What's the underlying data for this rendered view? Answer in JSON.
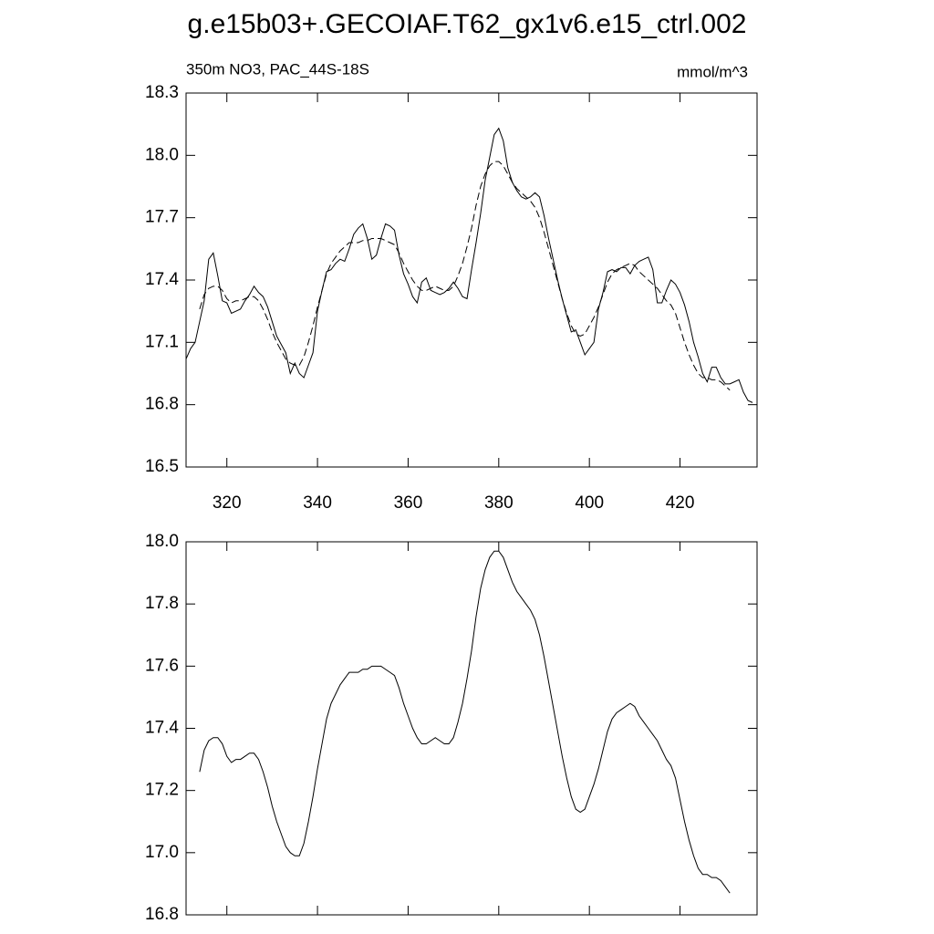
{
  "chart_data": [
    {
      "type": "line",
      "title": "g.e15b03+.GECOIAF.T62_gx1v6.e15_ctrl.002",
      "subtitle": "350m NO3, PAC_44S-18S",
      "units": "mmol/m^3",
      "xlim": [
        311,
        437
      ],
      "ylim": [
        16.5,
        18.3
      ],
      "xticks": [
        320,
        340,
        360,
        380,
        400,
        420
      ],
      "yticks": [
        16.5,
        16.8,
        17.1,
        17.4,
        17.7,
        {
          "value": 18,
          "label": "18.0"
        },
        18.3
      ],
      "show_xtick_labels": true,
      "series": [
        {
          "style": "solid",
          "color": "#000000",
          "x": [
            311,
            312,
            313,
            314,
            315,
            316,
            317,
            318,
            319,
            320,
            321,
            322,
            323,
            324,
            325,
            326,
            327,
            328,
            329,
            330,
            331,
            332,
            333,
            334,
            335,
            336,
            337,
            338,
            339,
            340,
            341,
            342,
            343,
            344,
            345,
            346,
            347,
            348,
            349,
            350,
            351,
            352,
            353,
            354,
            355,
            356,
            357,
            358,
            359,
            360,
            361,
            362,
            363,
            364,
            365,
            366,
            367,
            368,
            369,
            370,
            371,
            372,
            373,
            374,
            375,
            376,
            377,
            378,
            379,
            380,
            381,
            382,
            383,
            384,
            385,
            386,
            387,
            388,
            389,
            390,
            391,
            392,
            393,
            394,
            395,
            396,
            397,
            398,
            399,
            400,
            401,
            402,
            403,
            404,
            405,
            406,
            407,
            408,
            409,
            410,
            411,
            412,
            413,
            414,
            415,
            416,
            417,
            418,
            419,
            420,
            421,
            422,
            423,
            424,
            425,
            426,
            427,
            428,
            429,
            430,
            431,
            432,
            433,
            434,
            435,
            436
          ],
          "values": [
            17.02,
            17.07,
            17.1,
            17.2,
            17.3,
            17.5,
            17.53,
            17.42,
            17.3,
            17.29,
            17.24,
            17.25,
            17.26,
            17.3,
            17.33,
            17.37,
            17.34,
            17.32,
            17.27,
            17.2,
            17.13,
            17.09,
            17.05,
            16.95,
            17.0,
            16.95,
            16.93,
            16.99,
            17.05,
            17.25,
            17.35,
            17.44,
            17.45,
            17.48,
            17.5,
            17.49,
            17.55,
            17.62,
            17.65,
            17.67,
            17.6,
            17.5,
            17.52,
            17.6,
            17.67,
            17.66,
            17.64,
            17.52,
            17.43,
            17.38,
            17.32,
            17.29,
            17.39,
            17.41,
            17.35,
            17.34,
            17.33,
            17.34,
            17.36,
            17.39,
            17.36,
            17.32,
            17.31,
            17.45,
            17.58,
            17.72,
            17.88,
            17.99,
            18.1,
            18.13,
            18.07,
            17.94,
            17.87,
            17.83,
            17.8,
            17.79,
            17.8,
            17.82,
            17.8,
            17.71,
            17.6,
            17.5,
            17.4,
            17.31,
            17.23,
            17.15,
            17.16,
            17.1,
            17.04,
            17.07,
            17.1,
            17.26,
            17.34,
            17.44,
            17.45,
            17.44,
            17.46,
            17.46,
            17.43,
            17.47,
            17.49,
            17.5,
            17.51,
            17.45,
            17.29,
            17.29,
            17.35,
            17.4,
            17.38,
            17.34,
            17.28,
            17.2,
            17.1,
            17.03,
            16.95,
            16.91,
            16.98,
            16.98,
            16.93,
            16.9,
            16.9,
            16.91,
            16.92,
            16.86,
            16.82,
            16.81
          ]
        },
        {
          "style": "dashed",
          "color": "#000000",
          "x": [
            314,
            315,
            316,
            317,
            318,
            319,
            320,
            321,
            322,
            323,
            324,
            325,
            326,
            327,
            328,
            329,
            330,
            331,
            332,
            333,
            334,
            335,
            336,
            337,
            338,
            339,
            340,
            341,
            342,
            343,
            344,
            345,
            346,
            347,
            348,
            349,
            350,
            351,
            352,
            353,
            354,
            355,
            356,
            357,
            358,
            359,
            360,
            361,
            362,
            363,
            364,
            365,
            366,
            367,
            368,
            369,
            370,
            371,
            372,
            373,
            374,
            375,
            376,
            377,
            378,
            379,
            380,
            381,
            382,
            383,
            384,
            385,
            386,
            387,
            388,
            389,
            390,
            391,
            392,
            393,
            394,
            395,
            396,
            397,
            398,
            399,
            400,
            401,
            402,
            403,
            404,
            405,
            406,
            407,
            408,
            409,
            410,
            411,
            412,
            413,
            414,
            415,
            416,
            417,
            418,
            419,
            420,
            421,
            422,
            423,
            424,
            425,
            426,
            427,
            428,
            429,
            430,
            431
          ],
          "values": [
            17.26,
            17.33,
            17.36,
            17.37,
            17.37,
            17.35,
            17.31,
            17.29,
            17.3,
            17.3,
            17.31,
            17.32,
            17.32,
            17.3,
            17.26,
            17.21,
            17.15,
            17.1,
            17.06,
            17.02,
            17.0,
            16.99,
            16.99,
            17.03,
            17.1,
            17.18,
            17.27,
            17.35,
            17.43,
            17.48,
            17.51,
            17.54,
            17.56,
            17.58,
            17.58,
            17.58,
            17.59,
            17.59,
            17.6,
            17.6,
            17.6,
            17.59,
            17.58,
            17.57,
            17.53,
            17.48,
            17.44,
            17.4,
            17.37,
            17.35,
            17.35,
            17.36,
            17.37,
            17.36,
            17.35,
            17.35,
            17.37,
            17.42,
            17.48,
            17.56,
            17.65,
            17.76,
            17.85,
            17.91,
            17.95,
            17.97,
            17.97,
            17.95,
            17.91,
            17.87,
            17.84,
            17.82,
            17.8,
            17.78,
            17.75,
            17.7,
            17.63,
            17.55,
            17.47,
            17.39,
            17.31,
            17.24,
            17.18,
            17.14,
            17.13,
            17.14,
            17.18,
            17.22,
            17.27,
            17.33,
            17.39,
            17.43,
            17.45,
            17.46,
            17.47,
            17.48,
            17.47,
            17.44,
            17.42,
            17.4,
            17.38,
            17.36,
            17.33,
            17.3,
            17.28,
            17.24,
            17.17,
            17.1,
            17.04,
            16.99,
            16.95,
            16.93,
            16.93,
            16.92,
            16.92,
            16.91,
            16.89,
            16.87
          ]
        }
      ]
    },
    {
      "type": "line",
      "xlim": [
        311,
        437
      ],
      "ylim": [
        16.8,
        18.0
      ],
      "xticks": [
        320,
        340,
        360,
        380,
        400,
        420
      ],
      "yticks": [
        16.8,
        {
          "value": 17,
          "label": "17.0"
        },
        17.2,
        17.4,
        17.6,
        17.8,
        {
          "value": 18,
          "label": "18.0"
        }
      ],
      "show_xtick_labels": false,
      "series": [
        {
          "style": "solid",
          "color": "#000000",
          "x": [
            314,
            315,
            316,
            317,
            318,
            319,
            320,
            321,
            322,
            323,
            324,
            325,
            326,
            327,
            328,
            329,
            330,
            331,
            332,
            333,
            334,
            335,
            336,
            337,
            338,
            339,
            340,
            341,
            342,
            343,
            344,
            345,
            346,
            347,
            348,
            349,
            350,
            351,
            352,
            353,
            354,
            355,
            356,
            357,
            358,
            359,
            360,
            361,
            362,
            363,
            364,
            365,
            366,
            367,
            368,
            369,
            370,
            371,
            372,
            373,
            374,
            375,
            376,
            377,
            378,
            379,
            380,
            381,
            382,
            383,
            384,
            385,
            386,
            387,
            388,
            389,
            390,
            391,
            392,
            393,
            394,
            395,
            396,
            397,
            398,
            399,
            400,
            401,
            402,
            403,
            404,
            405,
            406,
            407,
            408,
            409,
            410,
            411,
            412,
            413,
            414,
            415,
            416,
            417,
            418,
            419,
            420,
            421,
            422,
            423,
            424,
            425,
            426,
            427,
            428,
            429,
            430,
            431
          ],
          "values": [
            17.26,
            17.33,
            17.36,
            17.37,
            17.37,
            17.35,
            17.31,
            17.29,
            17.3,
            17.3,
            17.31,
            17.32,
            17.32,
            17.3,
            17.26,
            17.21,
            17.15,
            17.1,
            17.06,
            17.02,
            17.0,
            16.99,
            16.99,
            17.03,
            17.1,
            17.18,
            17.27,
            17.35,
            17.43,
            17.48,
            17.51,
            17.54,
            17.56,
            17.58,
            17.58,
            17.58,
            17.59,
            17.59,
            17.6,
            17.6,
            17.6,
            17.59,
            17.58,
            17.57,
            17.53,
            17.48,
            17.44,
            17.4,
            17.37,
            17.35,
            17.35,
            17.36,
            17.37,
            17.36,
            17.35,
            17.35,
            17.37,
            17.42,
            17.48,
            17.56,
            17.65,
            17.76,
            17.85,
            17.91,
            17.95,
            17.97,
            17.97,
            17.95,
            17.91,
            17.87,
            17.84,
            17.82,
            17.8,
            17.78,
            17.75,
            17.7,
            17.63,
            17.55,
            17.47,
            17.39,
            17.31,
            17.24,
            17.18,
            17.14,
            17.13,
            17.14,
            17.18,
            17.22,
            17.27,
            17.33,
            17.39,
            17.43,
            17.45,
            17.46,
            17.47,
            17.48,
            17.47,
            17.44,
            17.42,
            17.4,
            17.38,
            17.36,
            17.33,
            17.3,
            17.28,
            17.24,
            17.17,
            17.1,
            17.04,
            16.99,
            16.95,
            16.93,
            16.93,
            16.92,
            16.92,
            16.91,
            16.89,
            16.87
          ]
        }
      ]
    }
  ]
}
